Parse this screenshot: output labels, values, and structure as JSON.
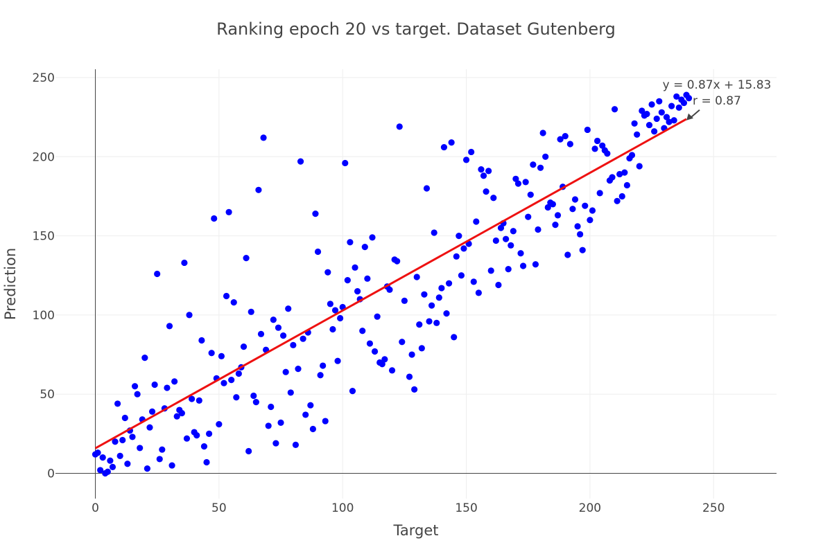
{
  "chart_data": {
    "type": "scatter",
    "title": "Ranking epoch 20 vs target. Dataset Gutenberg",
    "xlabel": "Target",
    "ylabel": "Prediction",
    "xlim": [
      -10,
      275
    ],
    "ylim": [
      -15,
      255
    ],
    "xticks": [
      0,
      50,
      100,
      150,
      200,
      250
    ],
    "yticks": [
      0,
      50,
      100,
      150,
      200,
      250
    ],
    "grid": true,
    "colors": {
      "points": "#0000ff",
      "fit_line": "#ee1111",
      "grid": "#eeeeee",
      "axis": "#444444"
    },
    "fit": {
      "slope": 0.87,
      "intercept": 15.83,
      "x_range": [
        0,
        239
      ]
    },
    "annotation": {
      "lines": [
        "y = 0.87x + 15.83",
        "r = 0.87"
      ],
      "target": [
        239,
        223
      ]
    },
    "points": [
      [
        0,
        12
      ],
      [
        1,
        13
      ],
      [
        2,
        2
      ],
      [
        3,
        10
      ],
      [
        4,
        0
      ],
      [
        5,
        1
      ],
      [
        6,
        8
      ],
      [
        7,
        4
      ],
      [
        8,
        20
      ],
      [
        9,
        44
      ],
      [
        10,
        11
      ],
      [
        11,
        21
      ],
      [
        12,
        35
      ],
      [
        13,
        6
      ],
      [
        14,
        27
      ],
      [
        15,
        23
      ],
      [
        16,
        55
      ],
      [
        17,
        50
      ],
      [
        18,
        16
      ],
      [
        19,
        34
      ],
      [
        20,
        73
      ],
      [
        21,
        3
      ],
      [
        22,
        29
      ],
      [
        23,
        39
      ],
      [
        24,
        56
      ],
      [
        25,
        126
      ],
      [
        26,
        9
      ],
      [
        27,
        15
      ],
      [
        28,
        41
      ],
      [
        29,
        54
      ],
      [
        30,
        93
      ],
      [
        31,
        5
      ],
      [
        32,
        58
      ],
      [
        33,
        36
      ],
      [
        34,
        40
      ],
      [
        35,
        38
      ],
      [
        36,
        133
      ],
      [
        37,
        22
      ],
      [
        38,
        100
      ],
      [
        39,
        47
      ],
      [
        40,
        26
      ],
      [
        41,
        24
      ],
      [
        42,
        46
      ],
      [
        43,
        84
      ],
      [
        44,
        17
      ],
      [
        45,
        7
      ],
      [
        46,
        25
      ],
      [
        47,
        76
      ],
      [
        48,
        161
      ],
      [
        49,
        60
      ],
      [
        50,
        31
      ],
      [
        51,
        74
      ],
      [
        52,
        57
      ],
      [
        53,
        112
      ],
      [
        54,
        165
      ],
      [
        55,
        59
      ],
      [
        56,
        108
      ],
      [
        57,
        48
      ],
      [
        58,
        63
      ],
      [
        59,
        67
      ],
      [
        60,
        80
      ],
      [
        61,
        136
      ],
      [
        62,
        14
      ],
      [
        63,
        102
      ],
      [
        64,
        49
      ],
      [
        65,
        45
      ],
      [
        66,
        179
      ],
      [
        67,
        88
      ],
      [
        68,
        212
      ],
      [
        69,
        78
      ],
      [
        70,
        30
      ],
      [
        71,
        42
      ],
      [
        72,
        97
      ],
      [
        73,
        19
      ],
      [
        74,
        92
      ],
      [
        75,
        32
      ],
      [
        76,
        87
      ],
      [
        77,
        64
      ],
      [
        78,
        104
      ],
      [
        79,
        51
      ],
      [
        80,
        81
      ],
      [
        81,
        18
      ],
      [
        82,
        66
      ],
      [
        83,
        197
      ],
      [
        84,
        85
      ],
      [
        85,
        37
      ],
      [
        86,
        89
      ],
      [
        87,
        43
      ],
      [
        88,
        28
      ],
      [
        89,
        164
      ],
      [
        90,
        140
      ],
      [
        91,
        62
      ],
      [
        92,
        68
      ],
      [
        93,
        33
      ],
      [
        94,
        127
      ],
      [
        95,
        107
      ],
      [
        96,
        91
      ],
      [
        97,
        103
      ],
      [
        98,
        71
      ],
      [
        99,
        98
      ],
      [
        100,
        105
      ],
      [
        101,
        196
      ],
      [
        102,
        122
      ],
      [
        103,
        146
      ],
      [
        104,
        52
      ],
      [
        105,
        130
      ],
      [
        106,
        115
      ],
      [
        107,
        110
      ],
      [
        108,
        90
      ],
      [
        109,
        143
      ],
      [
        110,
        123
      ],
      [
        111,
        82
      ],
      [
        112,
        149
      ],
      [
        113,
        77
      ],
      [
        114,
        99
      ],
      [
        115,
        70
      ],
      [
        116,
        69
      ],
      [
        117,
        72
      ],
      [
        118,
        118
      ],
      [
        119,
        116
      ],
      [
        120,
        65
      ],
      [
        121,
        135
      ],
      [
        122,
        134
      ],
      [
        123,
        219
      ],
      [
        124,
        83
      ],
      [
        125,
        109
      ],
      [
        127,
        61
      ],
      [
        128,
        75
      ],
      [
        129,
        53
      ],
      [
        130,
        124
      ],
      [
        131,
        94
      ],
      [
        132,
        79
      ],
      [
        133,
        113
      ],
      [
        134,
        180
      ],
      [
        135,
        96
      ],
      [
        136,
        106
      ],
      [
        137,
        152
      ],
      [
        138,
        95
      ],
      [
        139,
        111
      ],
      [
        140,
        117
      ],
      [
        141,
        206
      ],
      [
        142,
        101
      ],
      [
        143,
        120
      ],
      [
        144,
        209
      ],
      [
        145,
        86
      ],
      [
        146,
        137
      ],
      [
        147,
        150
      ],
      [
        148,
        125
      ],
      [
        149,
        142
      ],
      [
        150,
        198
      ],
      [
        151,
        145
      ],
      [
        152,
        203
      ],
      [
        153,
        121
      ],
      [
        154,
        159
      ],
      [
        155,
        114
      ],
      [
        156,
        192
      ],
      [
        157,
        188
      ],
      [
        158,
        178
      ],
      [
        159,
        191
      ],
      [
        160,
        128
      ],
      [
        161,
        174
      ],
      [
        162,
        147
      ],
      [
        163,
        119
      ],
      [
        164,
        155
      ],
      [
        165,
        158
      ],
      [
        166,
        148
      ],
      [
        167,
        129
      ],
      [
        168,
        144
      ],
      [
        169,
        153
      ],
      [
        170,
        186
      ],
      [
        171,
        183
      ],
      [
        172,
        139
      ],
      [
        173,
        131
      ],
      [
        174,
        184
      ],
      [
        175,
        162
      ],
      [
        176,
        176
      ],
      [
        177,
        195
      ],
      [
        178,
        132
      ],
      [
        179,
        154
      ],
      [
        180,
        193
      ],
      [
        181,
        215
      ],
      [
        182,
        200
      ],
      [
        183,
        168
      ],
      [
        184,
        171
      ],
      [
        185,
        170
      ],
      [
        186,
        157
      ],
      [
        187,
        163
      ],
      [
        188,
        211
      ],
      [
        189,
        181
      ],
      [
        190,
        213
      ],
      [
        191,
        138
      ],
      [
        192,
        208
      ],
      [
        193,
        167
      ],
      [
        194,
        173
      ],
      [
        195,
        156
      ],
      [
        196,
        151
      ],
      [
        197,
        141
      ],
      [
        198,
        169
      ],
      [
        199,
        217
      ],
      [
        200,
        160
      ],
      [
        201,
        166
      ],
      [
        202,
        205
      ],
      [
        203,
        210
      ],
      [
        204,
        177
      ],
      [
        205,
        207
      ],
      [
        206,
        204
      ],
      [
        207,
        202
      ],
      [
        208,
        185
      ],
      [
        209,
        187
      ],
      [
        210,
        230
      ],
      [
        211,
        172
      ],
      [
        212,
        189
      ],
      [
        213,
        175
      ],
      [
        214,
        190
      ],
      [
        215,
        182
      ],
      [
        216,
        199
      ],
      [
        217,
        201
      ],
      [
        218,
        221
      ],
      [
        219,
        214
      ],
      [
        220,
        194
      ],
      [
        221,
        229
      ],
      [
        222,
        226
      ],
      [
        223,
        227
      ],
      [
        224,
        220
      ],
      [
        225,
        233
      ],
      [
        226,
        216
      ],
      [
        227,
        224
      ],
      [
        228,
        235
      ],
      [
        229,
        228
      ],
      [
        230,
        218
      ],
      [
        231,
        225
      ],
      [
        232,
        222
      ],
      [
        233,
        232
      ],
      [
        234,
        223
      ],
      [
        235,
        238
      ],
      [
        236,
        231
      ],
      [
        237,
        236
      ],
      [
        238,
        234
      ],
      [
        239,
        239
      ],
      [
        240,
        237
      ]
    ]
  }
}
